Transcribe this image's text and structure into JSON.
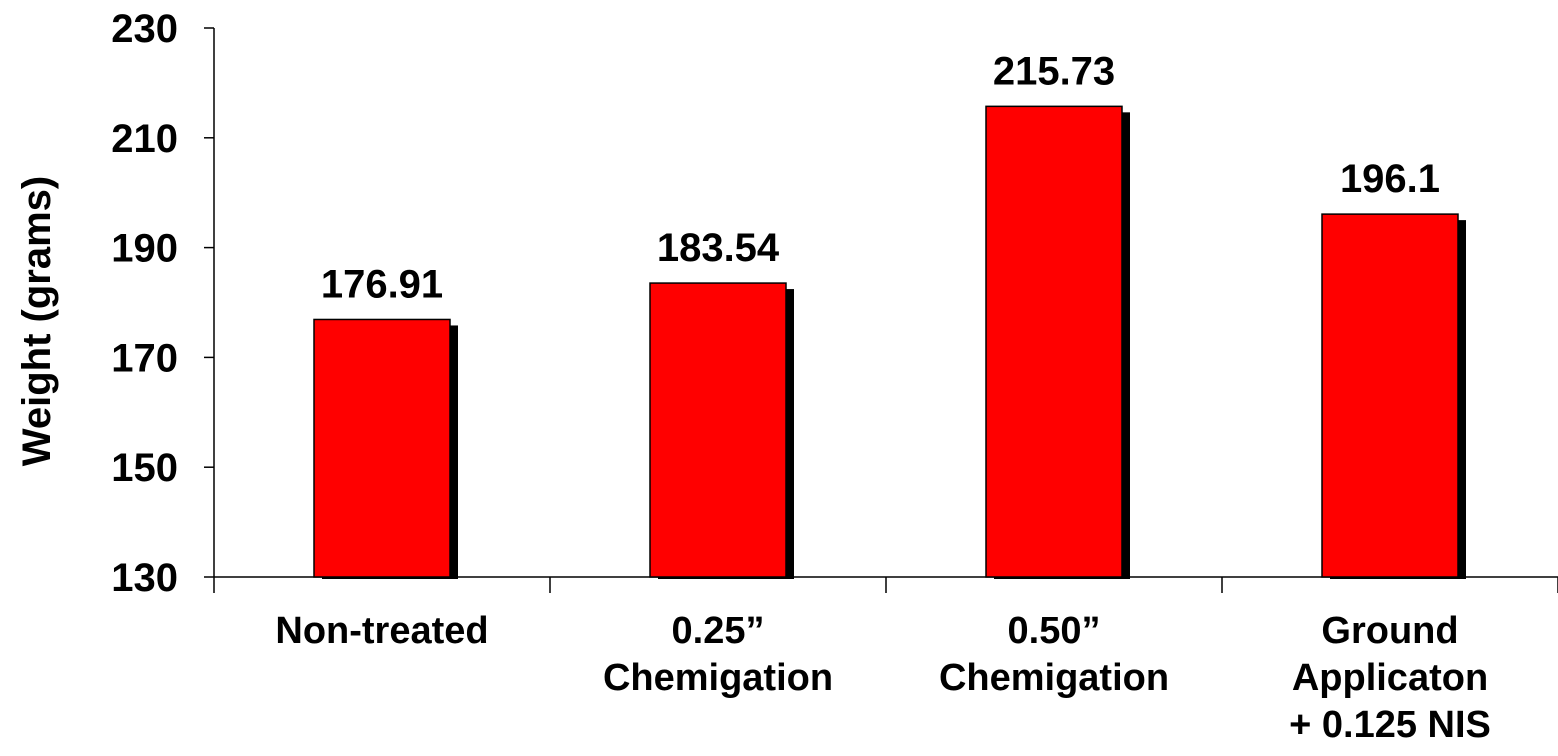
{
  "chart_data": {
    "type": "bar",
    "categories": [
      [
        "Non-treated"
      ],
      [
        "0.25”",
        "Chemigation"
      ],
      [
        "0.50”",
        "Chemigation"
      ],
      [
        "Ground",
        "Applicaton",
        "+ 0.125 NIS"
      ]
    ],
    "values": [
      176.91,
      183.54,
      215.73,
      196.1
    ],
    "data_labels": [
      "176.91",
      "183.54",
      "215.73",
      "196.1"
    ],
    "title": "",
    "xlabel": "",
    "ylabel": "Weight (grams)",
    "ylim": [
      130,
      230
    ],
    "yticks": [
      130,
      150,
      170,
      190,
      210,
      230
    ],
    "grid": false,
    "legend": "none",
    "bar_color": "#ff0000",
    "shadow_color": "#000000"
  }
}
